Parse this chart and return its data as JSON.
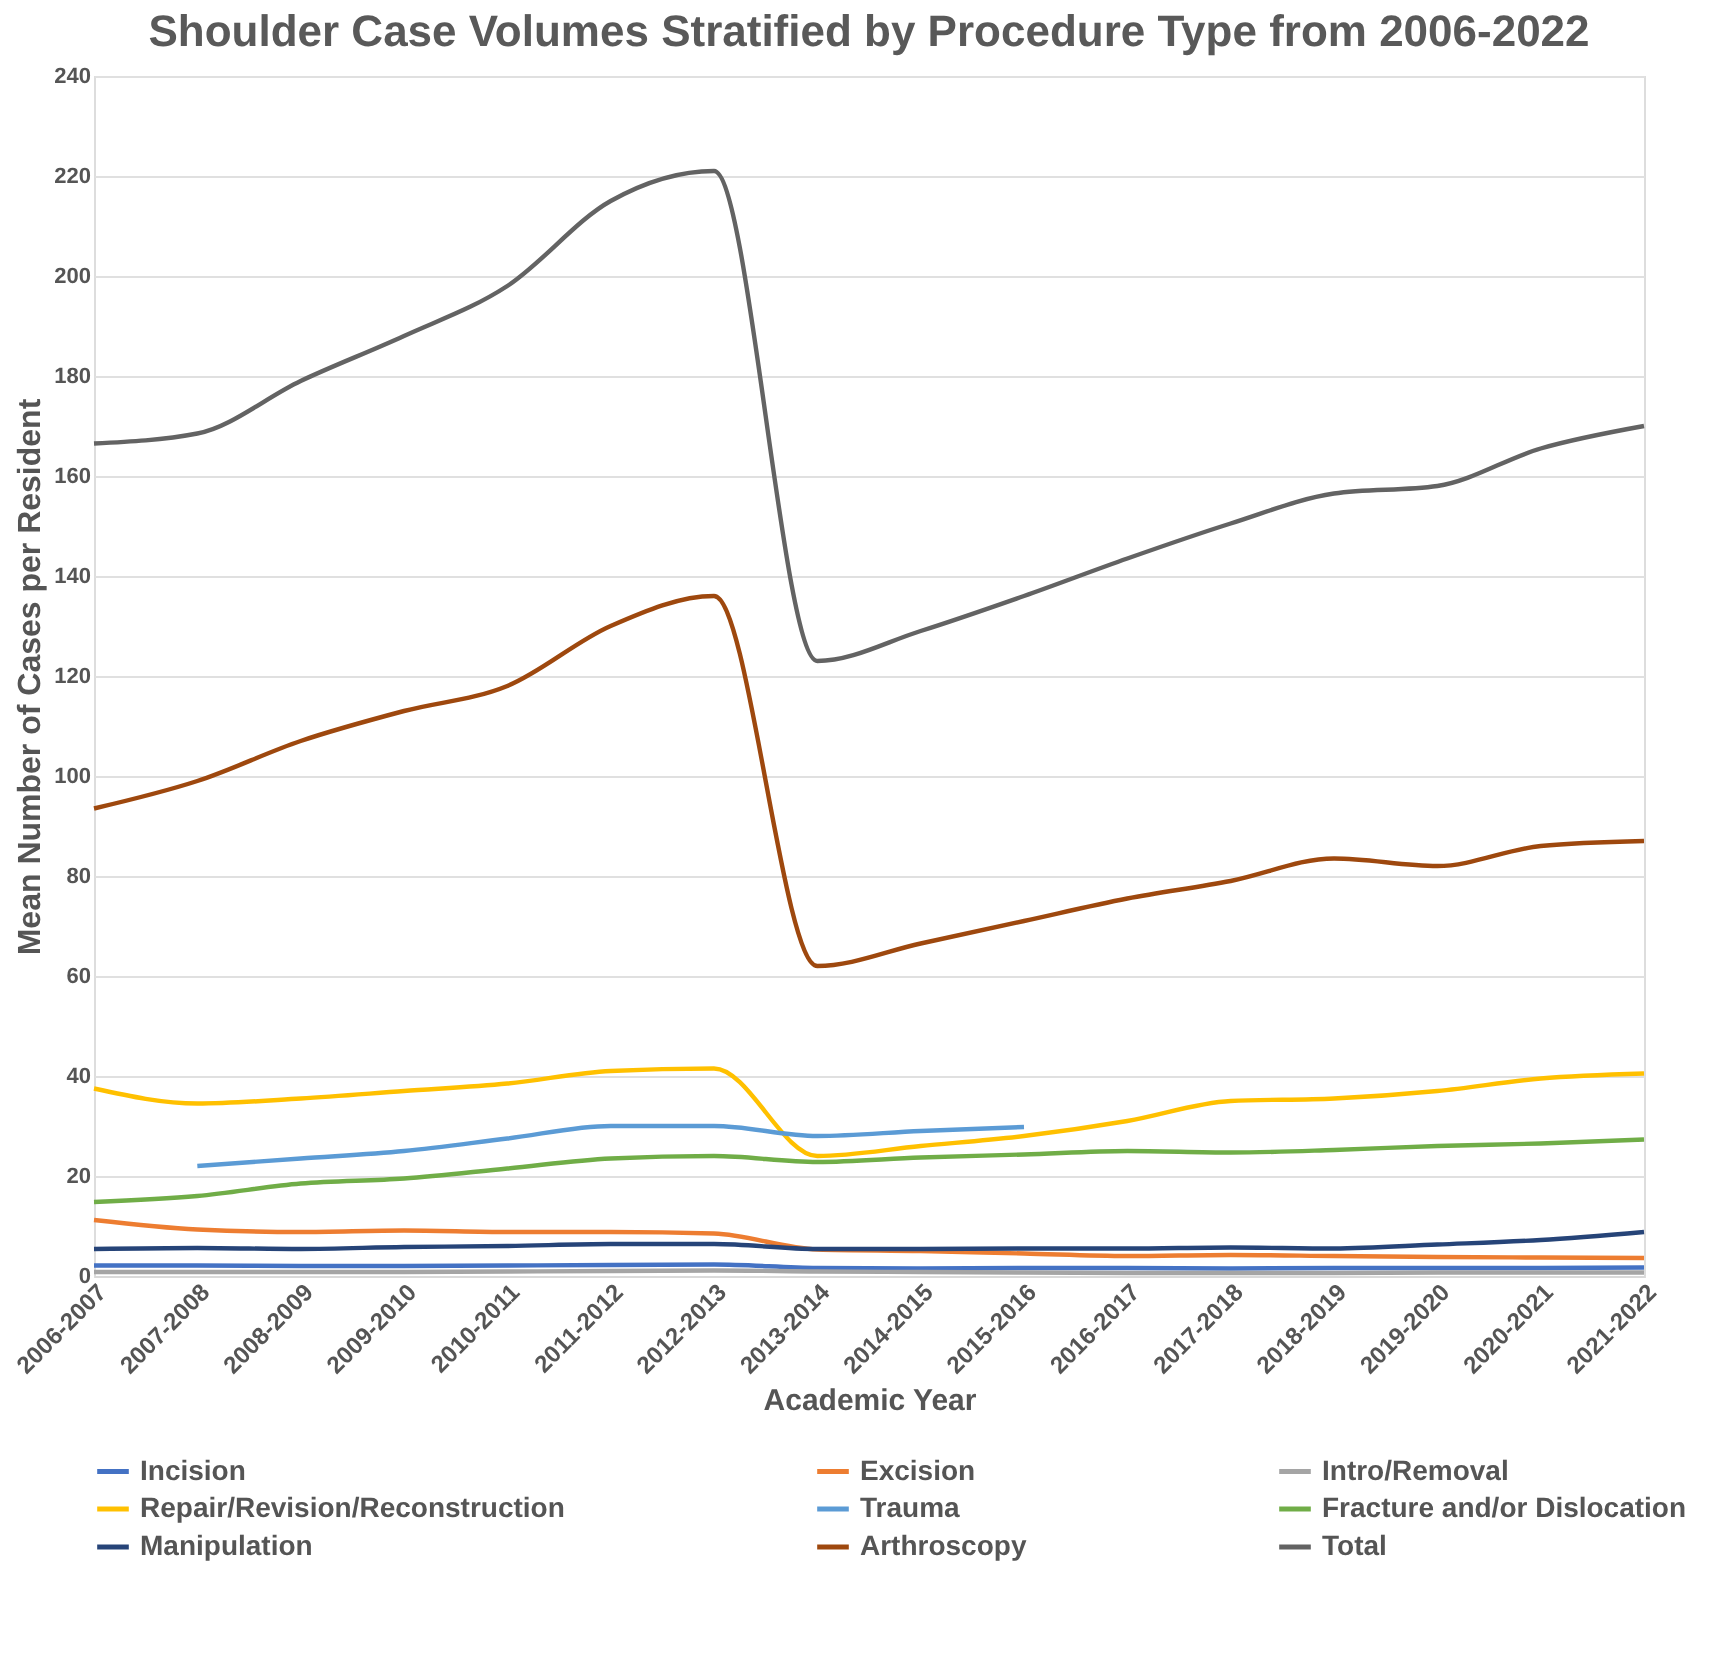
{
  "chart_data": {
    "type": "line",
    "title": "Shoulder Case Volumes Stratified by Procedure Type from 2006-2022",
    "xlabel": "Academic Year",
    "ylabel": "Mean Number of Cases per Resident",
    "categories": [
      "2006-2007",
      "2007-2008",
      "2008-2009",
      "2009-2010",
      "2010-2011",
      "2011-2012",
      "2012-2013",
      "2013-2014",
      "2014-2015",
      "2015-2016",
      "2016-2017",
      "2017-2018",
      "2018-2019",
      "2019-2020",
      "2020-2021",
      "2021-2022"
    ],
    "ylim": [
      0,
      240
    ],
    "yticks": [
      0,
      20,
      40,
      60,
      80,
      100,
      120,
      140,
      160,
      180,
      200,
      220,
      240
    ],
    "grid": "y",
    "legend": "bottom",
    "marker": "none",
    "line_style": "solid",
    "series": [
      {
        "name": "Incision",
        "color": "#4472c4",
        "values": [
          2.1,
          2.1,
          2.0,
          2.0,
          2.1,
          2.2,
          2.3,
          1.6,
          1.5,
          1.6,
          1.6,
          1.5,
          1.6,
          1.6,
          1.6,
          1.7
        ]
      },
      {
        "name": "Excision",
        "color": "#ed7d31",
        "values": [
          11.2,
          9.3,
          8.8,
          9.1,
          8.8,
          8.8,
          8.5,
          5.3,
          5.0,
          4.5,
          4.0,
          4.2,
          4.0,
          3.8,
          3.7,
          3.6
        ]
      },
      {
        "name": "Intro/Removal",
        "color": "#a5a5a5",
        "values": [
          0.8,
          0.8,
          0.8,
          0.8,
          0.9,
          1.0,
          1.1,
          0.9,
          0.8,
          0.7,
          0.6,
          0.6,
          0.6,
          0.7,
          0.7,
          0.7
        ]
      },
      {
        "name": "Repair/Revision/Reconstruction",
        "color": "#ffc000",
        "values": [
          37.5,
          34.5,
          35.5,
          37,
          38.5,
          41,
          41.5,
          24,
          26,
          28,
          31,
          35,
          35.5,
          37,
          39.5,
          40.5
        ]
      },
      {
        "name": "Trauma",
        "color": "#5b9bd5",
        "values": [
          null,
          22,
          23.5,
          25,
          27.5,
          30,
          30,
          28,
          29,
          29.8,
          null,
          null,
          null,
          null,
          null,
          null
        ]
      },
      {
        "name": "Fracture and/or Dislocation",
        "color": "#70ad47",
        "values": [
          14.8,
          16,
          18.5,
          19.5,
          21.5,
          23.5,
          24,
          22.8,
          23.7,
          24.3,
          25,
          24.7,
          25.2,
          26,
          26.5,
          27.3
        ]
      },
      {
        "name": "Manipulation",
        "color": "#264478",
        "values": [
          5.4,
          5.6,
          5.4,
          5.8,
          6.0,
          6.4,
          6.4,
          5.4,
          5.4,
          5.5,
          5.5,
          5.7,
          5.5,
          6.3,
          7.2,
          8.8
        ]
      },
      {
        "name": "Arthroscopy",
        "color": "#9e480e",
        "values": [
          93.5,
          99,
          107,
          113,
          118,
          130,
          136,
          62,
          66.5,
          71,
          75.5,
          79,
          83.5,
          82,
          86,
          87
        ]
      },
      {
        "name": "Total",
        "color": "#636363",
        "values": [
          166.5,
          168.5,
          179,
          188,
          198,
          215,
          221,
          123,
          129,
          136,
          143.5,
          150.5,
          156.5,
          158,
          165.5,
          170
        ]
      }
    ]
  }
}
